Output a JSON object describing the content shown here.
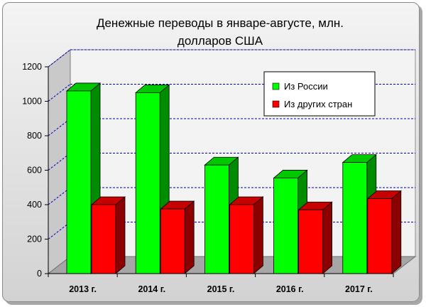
{
  "chart_data": {
    "type": "bar",
    "title_lines": [
      "Денежные переводы в январе-августе, млн.",
      "долларов США"
    ],
    "categories": [
      "2013 г.",
      "2014 г.",
      "2015 г.",
      "2016 г.",
      "2017 г."
    ],
    "series": [
      {
        "name": "Из России",
        "values": [
          1060,
          1050,
          630,
          555,
          645
        ],
        "color": "#00ff00"
      },
      {
        "name": "Из других стран",
        "values": [
          400,
          375,
          400,
          370,
          435
        ],
        "color": "#ff0000"
      }
    ],
    "ylim": [
      0,
      1200
    ],
    "yticks": [
      0,
      200,
      400,
      600,
      800,
      1000,
      1200
    ],
    "grid": true,
    "grid_style": "dashed-blue",
    "legend_position": "top-right",
    "chart_style": "3d-column"
  }
}
